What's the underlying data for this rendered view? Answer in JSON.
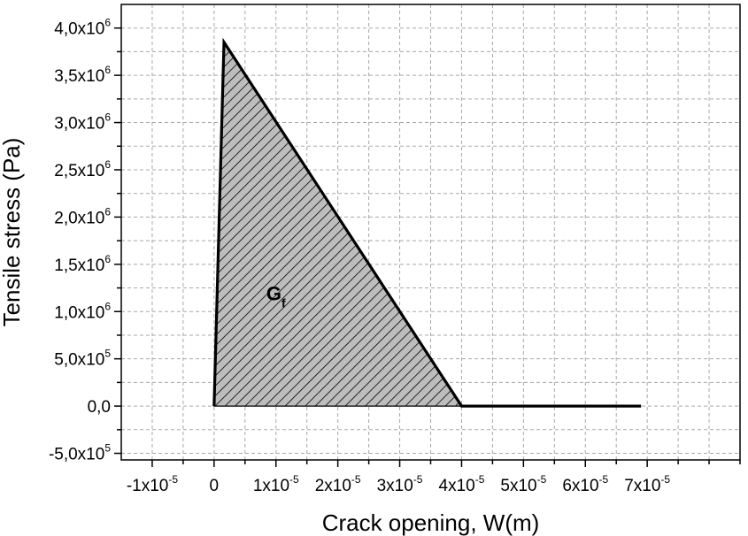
{
  "chart_data": {
    "type": "area",
    "title": "",
    "xlabel": "Crack opening, W(m)",
    "ylabel": "Tensile stress (Pa)",
    "xlim": [
      -1.5e-05,
      8.5e-05
    ],
    "ylim": [
      -570000.0,
      4250000.0
    ],
    "grid": true,
    "grid_style": "dashed",
    "x_ticks": [
      {
        "value": -1e-05,
        "mantissa": "-1x10",
        "exp": "-5"
      },
      {
        "value": 0,
        "mantissa": "0",
        "exp": ""
      },
      {
        "value": 1e-05,
        "mantissa": "1x10",
        "exp": "-5"
      },
      {
        "value": 2e-05,
        "mantissa": "2x10",
        "exp": "-5"
      },
      {
        "value": 3e-05,
        "mantissa": "3x10",
        "exp": "-5"
      },
      {
        "value": 4e-05,
        "mantissa": "4x10",
        "exp": "-5"
      },
      {
        "value": 5e-05,
        "mantissa": "5x10",
        "exp": "-5"
      },
      {
        "value": 6e-05,
        "mantissa": "6x10",
        "exp": "-5"
      },
      {
        "value": 7e-05,
        "mantissa": "7x10",
        "exp": "-5"
      }
    ],
    "y_ticks": [
      {
        "value": -500000.0,
        "mantissa": "-5,0x10",
        "exp": "5"
      },
      {
        "value": 0,
        "mantissa": "0,0",
        "exp": ""
      },
      {
        "value": 500000.0,
        "mantissa": "5,0x10",
        "exp": "5"
      },
      {
        "value": 1000000.0,
        "mantissa": "1,0x10",
        "exp": "6"
      },
      {
        "value": 1500000.0,
        "mantissa": "1,5x10",
        "exp": "6"
      },
      {
        "value": 2000000.0,
        "mantissa": "2,0x10",
        "exp": "6"
      },
      {
        "value": 2500000.0,
        "mantissa": "2,5x10",
        "exp": "6"
      },
      {
        "value": 3000000.0,
        "mantissa": "3,0x10",
        "exp": "6"
      },
      {
        "value": 3500000.0,
        "mantissa": "3,5x10",
        "exp": "6"
      },
      {
        "value": 4000000.0,
        "mantissa": "4,0x10",
        "exp": "6"
      }
    ],
    "series": [
      {
        "x": [
          0,
          1.6e-06,
          4e-05,
          6.9e-05
        ],
        "y": [
          0,
          3850000.0,
          0,
          0
        ],
        "fill": "hatched",
        "fill_color": "#bdbdbd",
        "line_color": "#000000"
      }
    ],
    "annotations": [
      {
        "text": "G",
        "subscript": "f",
        "x": 1e-05,
        "y": 1120000.0
      }
    ]
  }
}
